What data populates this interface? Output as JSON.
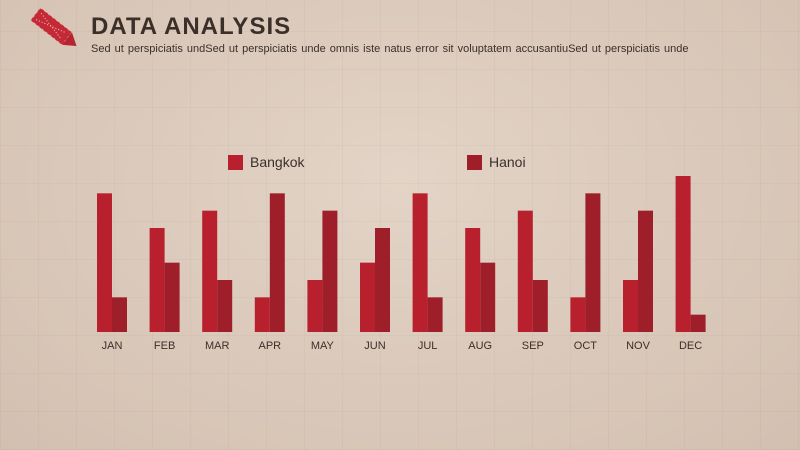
{
  "header": {
    "title": "DATA  ANALYSIS",
    "subtitle": "Sed ut perspiciatis undSed ut perspiciatis unde omnis iste natus error sit voluptatem accusantiuSed ut perspiciatis unde"
  },
  "logo": {
    "icon": "pencil-icon",
    "color": "#b5242f"
  },
  "colors": {
    "series_a": "#b8202e",
    "series_b": "#9e1f2a",
    "tick_text": "#3b2f2a"
  },
  "chart_data": {
    "type": "bar",
    "categories": [
      "JAN",
      "FEB",
      "MAR",
      "APR",
      "MAY",
      "JUN",
      "JUL",
      "AUG",
      "SEP",
      "OCT",
      "NOV",
      "DEC"
    ],
    "series": [
      {
        "name": "Bangkok",
        "values": [
          8,
          6,
          7,
          2,
          3,
          4,
          8,
          6,
          7,
          2,
          3,
          9
        ]
      },
      {
        "name": "Hanoi",
        "values": [
          2,
          4,
          3,
          8,
          7,
          6,
          2,
          4,
          3,
          8,
          7,
          1
        ]
      }
    ],
    "ylim": [
      0,
      9
    ],
    "legend_position": "top-center",
    "grid": false
  }
}
